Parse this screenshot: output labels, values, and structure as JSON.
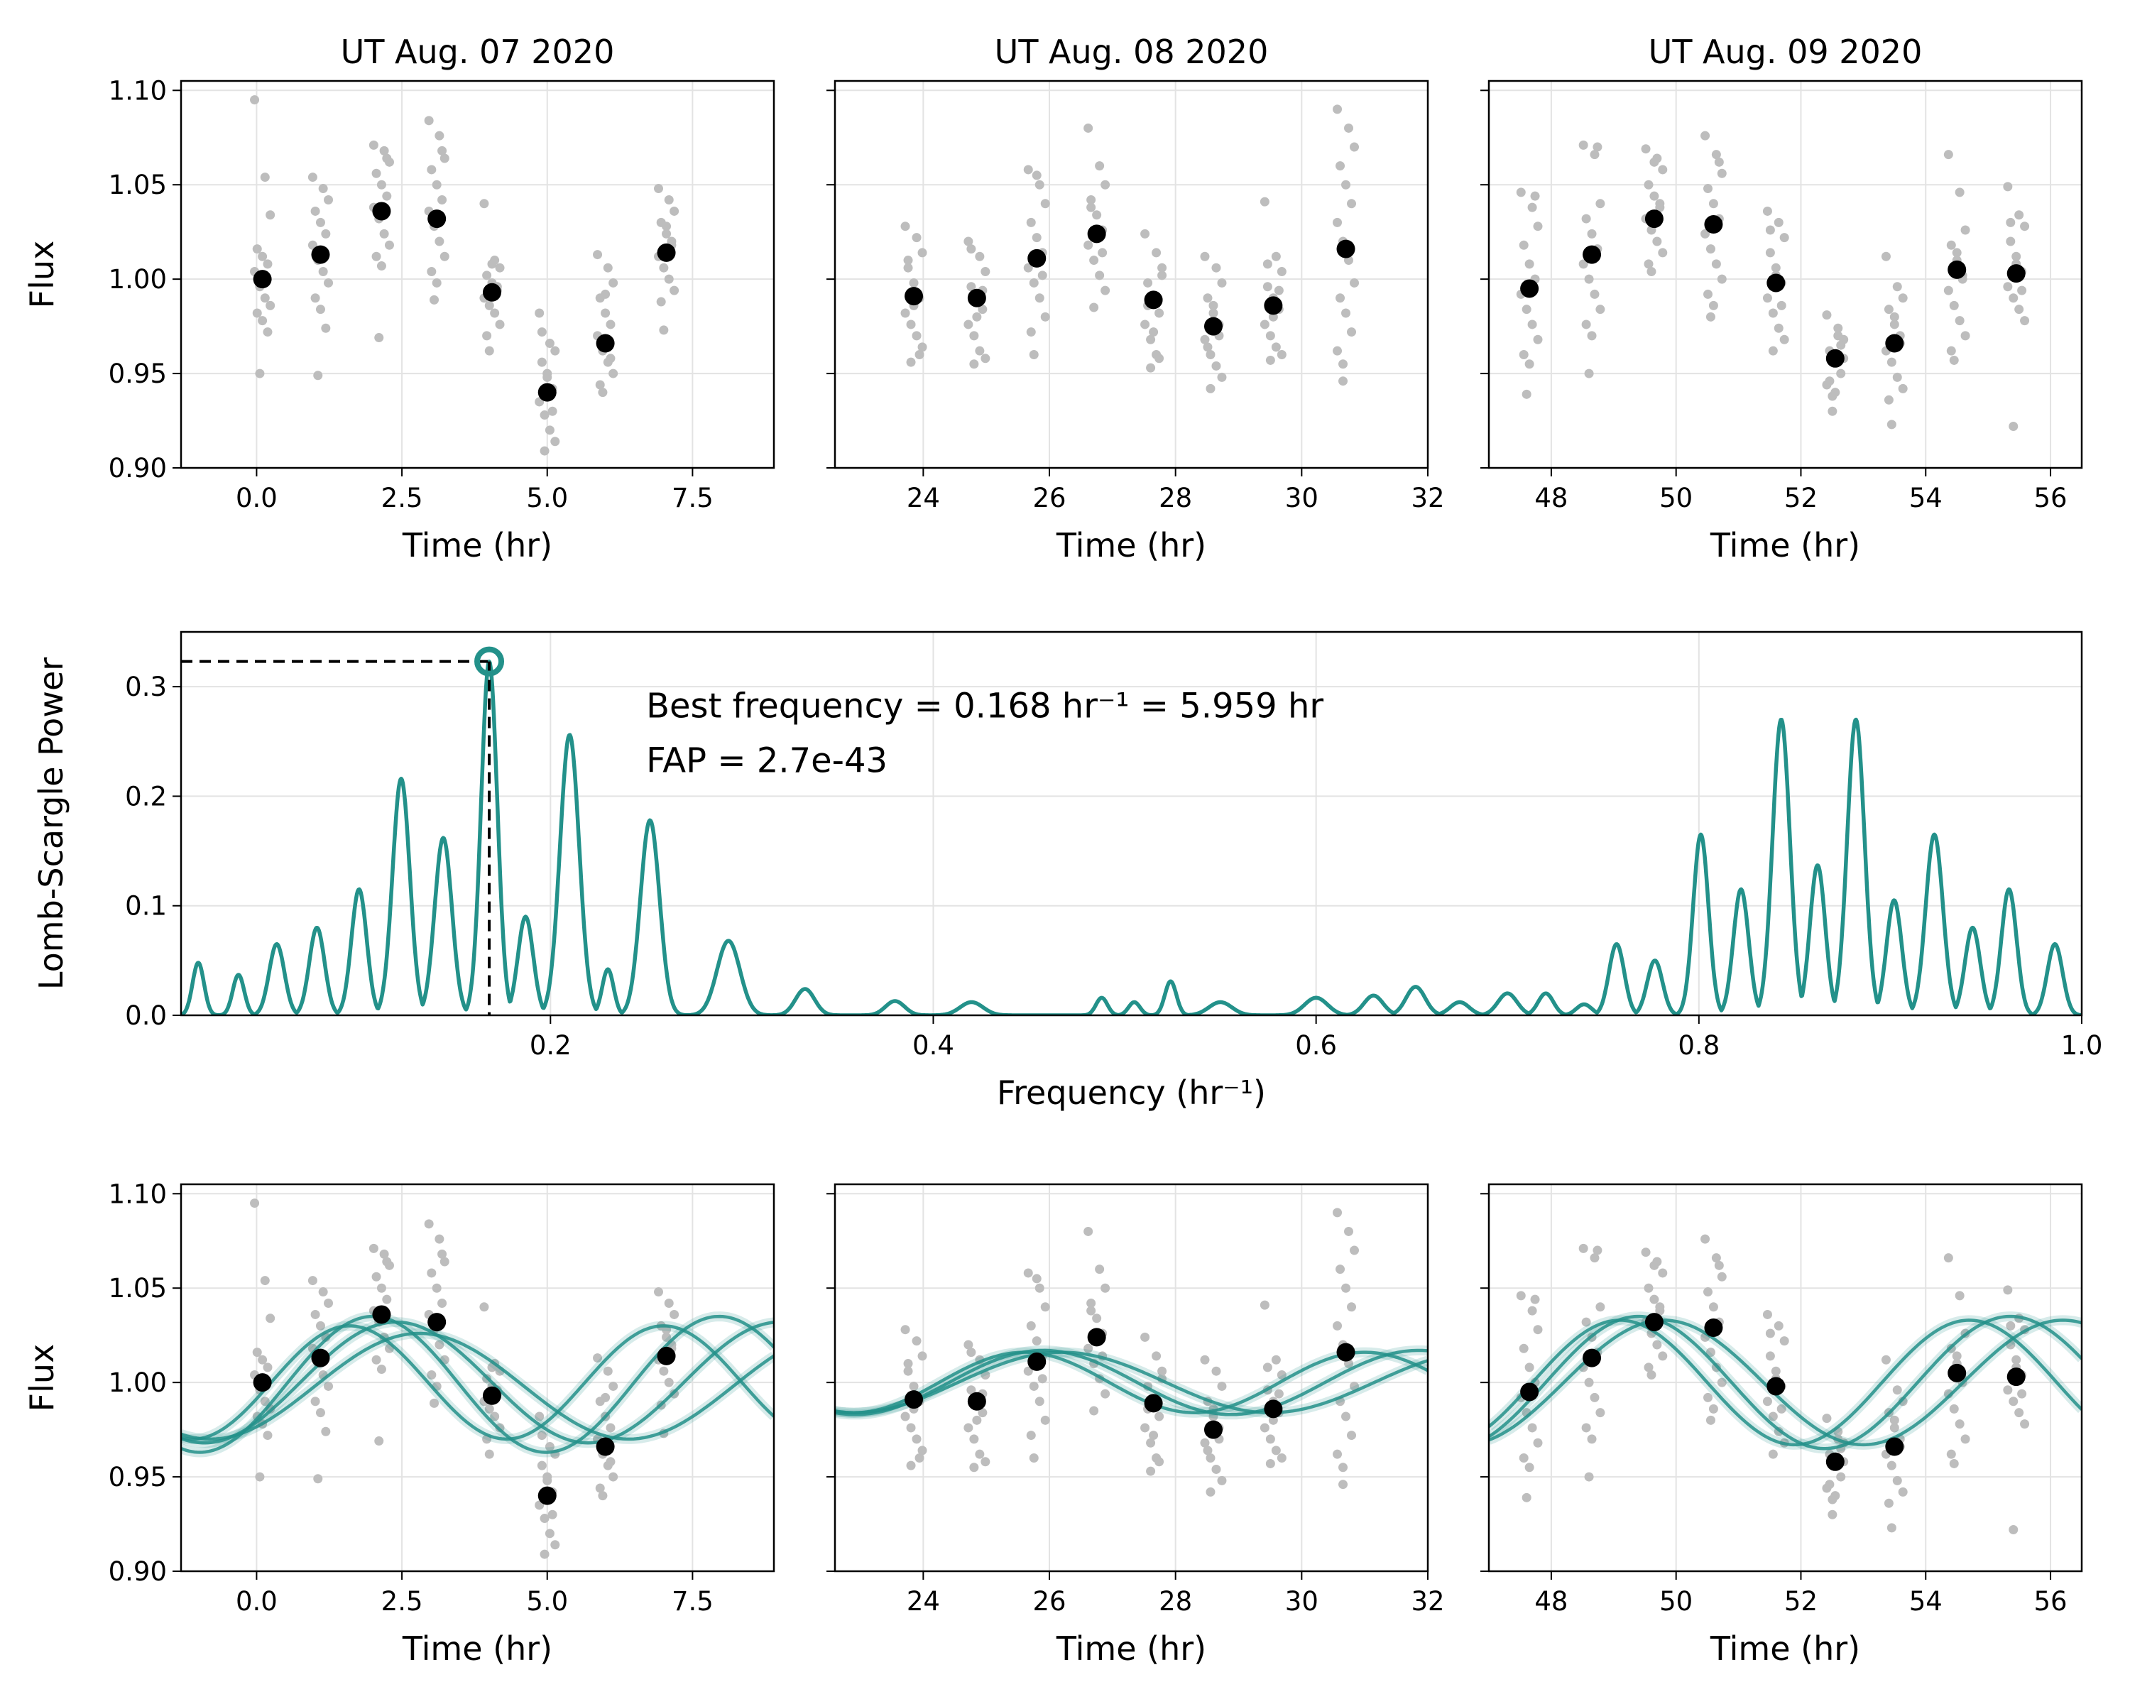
{
  "chart_data": [
    {
      "type": "scatter",
      "panel": "top-left",
      "title": "UT Aug. 07 2020",
      "xlabel": "Time (hr)",
      "ylabel": "Flux",
      "xlim": [
        -1.3,
        8.9
      ],
      "ylim": [
        0.9,
        1.105
      ],
      "xticks": [
        0.0,
        2.5,
        5.0,
        7.5
      ],
      "xtick_labels": [
        "0.0",
        "2.5",
        "5.0",
        "7.5"
      ],
      "yticks": [
        0.9,
        0.95,
        1.0,
        1.05,
        1.1
      ],
      "ytick_labels": [
        "0.90",
        "0.95",
        "1.00",
        "1.05",
        "1.10"
      ],
      "grid": true,
      "binned": {
        "x": [
          0.1,
          1.1,
          2.15,
          3.1,
          4.05,
          5.0,
          6.0,
          7.05
        ],
        "y": [
          1.0,
          1.013,
          1.036,
          1.032,
          0.993,
          0.94,
          0.966,
          1.014
        ]
      },
      "raw_spread": [
        [
          1.095,
          0.95,
          1.054,
          1.034,
          1.016,
          1.012,
          1.008,
          1.004,
          0.996,
          0.99,
          0.986,
          0.982,
          0.978,
          0.972
        ],
        [
          1.054,
          0.949,
          1.048,
          1.042,
          1.036,
          1.03,
          1.024,
          1.018,
          1.01,
          1.004,
          0.998,
          0.99,
          0.984,
          0.974
        ],
        [
          1.071,
          0.969,
          1.068,
          1.062,
          1.056,
          1.05,
          1.044,
          1.038,
          1.032,
          1.024,
          1.018,
          1.012,
          1.007,
          1.064
        ],
        [
          1.084,
          0.989,
          1.076,
          1.064,
          1.058,
          1.05,
          1.042,
          1.036,
          1.028,
          1.02,
          1.012,
          1.004,
          0.998,
          1.068
        ],
        [
          1.04,
          0.962,
          1.01,
          1.006,
          1.002,
          0.998,
          0.994,
          0.99,
          0.986,
          0.982,
          0.976,
          0.97,
          1.008,
          0.996
        ],
        [
          0.982,
          0.909,
          0.966,
          0.962,
          0.956,
          0.948,
          0.942,
          0.935,
          0.928,
          0.92,
          0.914,
          0.972,
          0.95,
          0.93
        ],
        [
          1.013,
          0.94,
          1.006,
          0.998,
          0.99,
          0.982,
          0.976,
          0.97,
          0.962,
          0.956,
          0.95,
          0.944,
          0.992,
          0.958
        ],
        [
          1.048,
          0.973,
          1.042,
          1.036,
          1.03,
          1.024,
          1.018,
          1.012,
          1.006,
          1.0,
          0.994,
          0.988,
          1.028,
          1.02
        ]
      ],
      "fits": [
        {
          "period": 5.959,
          "amp": 0.036,
          "offset": 0.999,
          "t0": 2.0
        },
        {
          "period": 6.6,
          "amp": 0.032,
          "offset": 1.0,
          "t0": 2.4
        },
        {
          "period": 5.4,
          "amp": 0.03,
          "offset": 1.0,
          "t0": 1.6
        },
        {
          "period": 7.2,
          "amp": 0.028,
          "offset": 0.998,
          "t0": 2.8
        }
      ]
    },
    {
      "type": "scatter",
      "panel": "top-middle",
      "title": "UT Aug. 08 2020",
      "xlabel": "Time (hr)",
      "ylabel": "",
      "xlim": [
        22.6,
        32.0
      ],
      "ylim": [
        0.9,
        1.105
      ],
      "xticks": [
        24,
        26,
        28,
        30,
        32
      ],
      "xtick_labels": [
        "24",
        "26",
        "28",
        "30",
        "32"
      ],
      "yticks": [
        0.9,
        0.95,
        1.0,
        1.05,
        1.1
      ],
      "grid": true,
      "binned": {
        "x": [
          23.85,
          24.85,
          25.8,
          26.75,
          27.65,
          28.6,
          29.55,
          30.7
        ],
        "y": [
          0.991,
          0.99,
          1.011,
          1.024,
          0.989,
          0.975,
          0.986,
          1.016
        ]
      },
      "raw_spread": [
        [
          1.028,
          0.956,
          1.022,
          1.014,
          1.006,
          0.998,
          0.99,
          0.982,
          0.976,
          0.97,
          0.964,
          1.01,
          0.986,
          0.96
        ],
        [
          1.02,
          0.955,
          1.012,
          1.004,
          0.996,
          0.99,
          0.984,
          0.976,
          0.97,
          0.962,
          0.958,
          1.016,
          0.98,
          0.994
        ],
        [
          1.058,
          0.96,
          1.05,
          1.04,
          1.03,
          1.022,
          1.014,
          1.006,
          0.998,
          0.99,
          0.98,
          0.972,
          1.055,
          1.002
        ],
        [
          1.08,
          0.985,
          1.06,
          1.05,
          1.042,
          1.034,
          1.026,
          1.018,
          1.01,
          1.002,
          0.994,
          1.038,
          1.022,
          1.014
        ],
        [
          1.024,
          0.953,
          1.014,
          1.006,
          0.998,
          0.99,
          0.982,
          0.976,
          0.968,
          0.96,
          1.002,
          0.986,
          0.972,
          0.958
        ],
        [
          1.012,
          0.942,
          1.006,
          0.998,
          0.99,
          0.982,
          0.976,
          0.968,
          0.96,
          0.954,
          0.948,
          0.964,
          0.986,
          0.97
        ],
        [
          1.041,
          0.957,
          1.012,
          1.004,
          0.996,
          0.99,
          0.984,
          0.976,
          0.97,
          0.964,
          0.96,
          1.008,
          0.98,
          0.994
        ],
        [
          1.09,
          0.946,
          1.08,
          1.07,
          1.06,
          1.05,
          1.04,
          1.03,
          1.02,
          1.01,
          0.998,
          0.99,
          0.982,
          0.972,
          0.962,
          0.955
        ]
      ],
      "fits": [
        {
          "period": 5.959,
          "amp": 0.017,
          "offset": 1.0,
          "t0": 25.9
        },
        {
          "period": 6.6,
          "amp": 0.016,
          "offset": 1.0,
          "t0": 26.2
        },
        {
          "period": 5.4,
          "amp": 0.016,
          "offset": 1.0,
          "t0": 25.6
        }
      ]
    },
    {
      "type": "scatter",
      "panel": "top-right",
      "title": "UT Aug. 09 2020",
      "xlabel": "Time (hr)",
      "ylabel": "",
      "xlim": [
        47.0,
        56.5
      ],
      "ylim": [
        0.9,
        1.105
      ],
      "xticks": [
        48,
        50,
        52,
        54,
        56
      ],
      "xtick_labels": [
        "48",
        "50",
        "52",
        "54",
        "56"
      ],
      "yticks": [
        0.9,
        0.95,
        1.0,
        1.05,
        1.1
      ],
      "grid": true,
      "binned": {
        "x": [
          47.65,
          48.65,
          49.65,
          50.6,
          51.6,
          52.55,
          53.5,
          54.5,
          55.45
        ],
        "y": [
          0.995,
          1.013,
          1.032,
          1.029,
          0.998,
          0.958,
          0.966,
          1.005,
          1.003
        ]
      },
      "raw_spread": [
        [
          1.046,
          0.939,
          1.038,
          1.028,
          1.018,
          1.008,
          1.0,
          0.992,
          0.984,
          0.976,
          0.968,
          0.96,
          0.955,
          1.044
        ],
        [
          1.071,
          0.95,
          1.066,
          1.04,
          1.032,
          1.024,
          1.016,
          1.008,
          1.0,
          0.992,
          0.984,
          0.976,
          0.97,
          1.07
        ],
        [
          1.069,
          1.004,
          1.064,
          1.058,
          1.05,
          1.044,
          1.038,
          1.032,
          1.026,
          1.02,
          1.014,
          1.008,
          1.062,
          1.04
        ],
        [
          1.076,
          0.98,
          1.066,
          1.056,
          1.048,
          1.04,
          1.032,
          1.024,
          1.016,
          1.008,
          1.0,
          0.992,
          0.986,
          1.062
        ],
        [
          1.036,
          0.962,
          1.03,
          1.022,
          1.014,
          1.006,
          0.998,
          0.99,
          0.982,
          0.974,
          0.968,
          1.026,
          1.002,
          0.986
        ],
        [
          0.981,
          0.93,
          0.974,
          0.968,
          0.962,
          0.956,
          0.95,
          0.944,
          0.938,
          0.97,
          0.958,
          0.946,
          0.94,
          0.965
        ],
        [
          1.012,
          0.923,
          0.996,
          0.99,
          0.984,
          0.976,
          0.97,
          0.962,
          0.956,
          0.948,
          0.942,
          0.936,
          0.98,
          0.966
        ],
        [
          1.066,
          0.957,
          1.046,
          1.026,
          1.018,
          1.01,
          1.002,
          0.994,
          0.986,
          0.978,
          0.97,
          0.962,
          1.014,
          1.0
        ],
        [
          1.049,
          0.922,
          1.034,
          1.028,
          1.02,
          1.012,
          1.004,
          0.996,
          0.99,
          0.984,
          0.978,
          1.03,
          1.008,
          0.994
        ]
      ],
      "fits": [
        {
          "period": 5.959,
          "amp": 0.035,
          "offset": 1.0,
          "t0": 49.4
        },
        {
          "period": 6.4,
          "amp": 0.033,
          "offset": 1.0,
          "t0": 49.8
        },
        {
          "period": 5.6,
          "amp": 0.033,
          "offset": 1.0,
          "t0": 49.1
        }
      ]
    },
    {
      "type": "line",
      "panel": "middle",
      "title": "",
      "xlabel": "Frequency (hr⁻¹)",
      "ylabel": "Lomb-Scargle Power",
      "xlim": [
        0.007,
        1.0
      ],
      "ylim": [
        0.0,
        0.35
      ],
      "xticks": [
        0.2,
        0.4,
        0.6,
        0.8,
        1.0
      ],
      "xtick_labels": [
        "0.2",
        "0.4",
        "0.6",
        "0.8",
        "1.0"
      ],
      "yticks": [
        0.0,
        0.1,
        0.2,
        0.3
      ],
      "ytick_labels": [
        "0.0",
        "0.1",
        "0.2",
        "0.3"
      ],
      "grid": true,
      "peaks": [
        [
          0.016,
          0.048,
          0.003
        ],
        [
          0.037,
          0.037,
          0.003
        ],
        [
          0.057,
          0.065,
          0.004
        ],
        [
          0.078,
          0.08,
          0.004
        ],
        [
          0.1,
          0.115,
          0.004
        ],
        [
          0.122,
          0.216,
          0.0045
        ],
        [
          0.144,
          0.162,
          0.0045
        ],
        [
          0.168,
          0.323,
          0.0042
        ],
        [
          0.187,
          0.09,
          0.004
        ],
        [
          0.21,
          0.256,
          0.005
        ],
        [
          0.23,
          0.042,
          0.003
        ],
        [
          0.252,
          0.178,
          0.005
        ],
        [
          0.293,
          0.068,
          0.006
        ],
        [
          0.333,
          0.024,
          0.005
        ],
        [
          0.38,
          0.013,
          0.005
        ],
        [
          0.42,
          0.012,
          0.006
        ],
        [
          0.488,
          0.016,
          0.003
        ],
        [
          0.505,
          0.012,
          0.003
        ],
        [
          0.524,
          0.031,
          0.003
        ],
        [
          0.55,
          0.012,
          0.006
        ],
        [
          0.6,
          0.016,
          0.006
        ],
        [
          0.63,
          0.018,
          0.005
        ],
        [
          0.652,
          0.026,
          0.005
        ],
        [
          0.675,
          0.012,
          0.005
        ],
        [
          0.7,
          0.02,
          0.005
        ],
        [
          0.72,
          0.02,
          0.004
        ],
        [
          0.74,
          0.01,
          0.004
        ],
        [
          0.757,
          0.065,
          0.004
        ],
        [
          0.777,
          0.05,
          0.004
        ],
        [
          0.801,
          0.165,
          0.004
        ],
        [
          0.822,
          0.115,
          0.004
        ],
        [
          0.843,
          0.27,
          0.0045
        ],
        [
          0.862,
          0.137,
          0.004
        ],
        [
          0.882,
          0.27,
          0.0045
        ],
        [
          0.902,
          0.105,
          0.004
        ],
        [
          0.923,
          0.165,
          0.0045
        ],
        [
          0.943,
          0.08,
          0.004
        ],
        [
          0.962,
          0.115,
          0.004
        ],
        [
          0.986,
          0.065,
          0.004
        ]
      ],
      "best_frequency": 0.168,
      "best_power": 0.323,
      "annotation_line1": "Best frequency = 0.168 hr⁻¹ = 5.959 hr",
      "annotation_line2": "FAP = 2.7e-43"
    }
  ],
  "bottom_row_note": "Bottom row repeats the three nights with sinusoidal fits overplotted.",
  "colors": {
    "teal": "#23918a",
    "raw_points": "#bdbdbd",
    "binned_points": "#000000",
    "grid": "#e3e3e3"
  }
}
